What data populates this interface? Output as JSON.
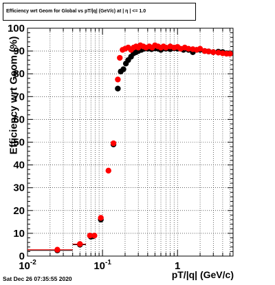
{
  "chart_data": {
    "type": "scatter",
    "title": "Efficiency wrt Geom for Global vs pT/|q| (GeV/c) at | η | <= 1.0",
    "xlabel": "pT/|q| (GeV/c)",
    "ylabel": "Efficiency wrt Geom (%)",
    "x_scale": "log",
    "xlim": [
      0.01,
      5.5
    ],
    "ylim": [
      0,
      100
    ],
    "x_tick_labels": [
      "10^-2",
      "10^-1",
      "1"
    ],
    "y_tick_labels": [
      "0",
      "10",
      "20",
      "30",
      "40",
      "50",
      "60",
      "70",
      "80",
      "90",
      "100"
    ],
    "grid": true,
    "series": [
      {
        "color": "#000000",
        "points": [
          {
            "x": 0.025,
            "y": 2.5,
            "xerr": [
              0.01,
              0.04
            ]
          },
          {
            "x": 0.05,
            "y": 5.0,
            "xerr": [
              0.04,
              0.06
            ]
          },
          {
            "x": 0.07,
            "y": 8.5
          },
          {
            "x": 0.075,
            "y": 8.7
          },
          {
            "x": 0.095,
            "y": 16.0
          },
          {
            "x": 0.14,
            "y": 49.0
          },
          {
            "x": 0.16,
            "y": 73.5
          },
          {
            "x": 0.175,
            "y": 81.0
          },
          {
            "x": 0.19,
            "y": 82.0
          },
          {
            "x": 0.205,
            "y": 84.5
          },
          {
            "x": 0.22,
            "y": 86.0
          },
          {
            "x": 0.24,
            "y": 87.5
          },
          {
            "x": 0.26,
            "y": 89.0
          },
          {
            "x": 0.28,
            "y": 89.5
          },
          {
            "x": 0.3,
            "y": 90.0
          },
          {
            "x": 0.33,
            "y": 90.5
          },
          {
            "x": 0.36,
            "y": 91.0
          },
          {
            "x": 0.4,
            "y": 91.0
          },
          {
            "x": 0.45,
            "y": 90.8
          },
          {
            "x": 0.5,
            "y": 91.2
          },
          {
            "x": 0.55,
            "y": 91.0
          },
          {
            "x": 0.6,
            "y": 90.5
          },
          {
            "x": 0.7,
            "y": 91.0
          },
          {
            "x": 0.8,
            "y": 90.8
          },
          {
            "x": 0.9,
            "y": 91.2
          },
          {
            "x": 1.0,
            "y": 91.0
          },
          {
            "x": 1.2,
            "y": 90.5
          },
          {
            "x": 1.4,
            "y": 90.5
          },
          {
            "x": 1.6,
            "y": 89.5
          },
          {
            "x": 1.8,
            "y": 90.5
          },
          {
            "x": 2.0,
            "y": 90.5
          },
          {
            "x": 2.3,
            "y": 90.0
          },
          {
            "x": 2.6,
            "y": 89.8
          },
          {
            "x": 3.0,
            "y": 89.5
          },
          {
            "x": 3.5,
            "y": 89.7
          },
          {
            "x": 4.0,
            "y": 89.5
          },
          {
            "x": 4.5,
            "y": 89.0
          },
          {
            "x": 5.0,
            "y": 89.0
          }
        ]
      },
      {
        "color": "#ff0000",
        "points": [
          {
            "x": 0.025,
            "y": 2.8,
            "xerr": [
              0.01,
              0.04
            ]
          },
          {
            "x": 0.05,
            "y": 5.3,
            "xerr": [
              0.04,
              0.06
            ]
          },
          {
            "x": 0.068,
            "y": 9.0
          },
          {
            "x": 0.078,
            "y": 9.0
          },
          {
            "x": 0.095,
            "y": 16.8
          },
          {
            "x": 0.12,
            "y": 37.5
          },
          {
            "x": 0.14,
            "y": 49.5
          },
          {
            "x": 0.16,
            "y": 77.5
          },
          {
            "x": 0.17,
            "y": 87.0
          },
          {
            "x": 0.185,
            "y": 90.5
          },
          {
            "x": 0.2,
            "y": 91.0
          },
          {
            "x": 0.22,
            "y": 91.5
          },
          {
            "x": 0.24,
            "y": 90.5
          },
          {
            "x": 0.26,
            "y": 91.5
          },
          {
            "x": 0.28,
            "y": 92.0
          },
          {
            "x": 0.3,
            "y": 91.5
          },
          {
            "x": 0.32,
            "y": 92.5
          },
          {
            "x": 0.35,
            "y": 92.0
          },
          {
            "x": 0.38,
            "y": 91.5
          },
          {
            "x": 0.42,
            "y": 92.0
          },
          {
            "x": 0.46,
            "y": 91.5
          },
          {
            "x": 0.5,
            "y": 92.5
          },
          {
            "x": 0.55,
            "y": 92.0
          },
          {
            "x": 0.6,
            "y": 91.5
          },
          {
            "x": 0.65,
            "y": 92.0
          },
          {
            "x": 0.7,
            "y": 91.5
          },
          {
            "x": 0.8,
            "y": 92.0
          },
          {
            "x": 0.9,
            "y": 91.5
          },
          {
            "x": 1.0,
            "y": 91.8
          },
          {
            "x": 1.1,
            "y": 91.0
          },
          {
            "x": 1.25,
            "y": 91.5
          },
          {
            "x": 1.4,
            "y": 91.0
          },
          {
            "x": 1.6,
            "y": 90.8
          },
          {
            "x": 1.8,
            "y": 90.5
          },
          {
            "x": 2.0,
            "y": 91.0
          },
          {
            "x": 2.3,
            "y": 90.0
          },
          {
            "x": 2.6,
            "y": 89.8
          },
          {
            "x": 3.0,
            "y": 89.5
          },
          {
            "x": 3.5,
            "y": 89.3
          },
          {
            "x": 4.0,
            "y": 89.0
          },
          {
            "x": 4.5,
            "y": 88.8
          },
          {
            "x": 5.0,
            "y": 88.8
          }
        ]
      }
    ]
  },
  "footer": {
    "timestamp": "Sat Dec 26 07:35:55 2020"
  }
}
